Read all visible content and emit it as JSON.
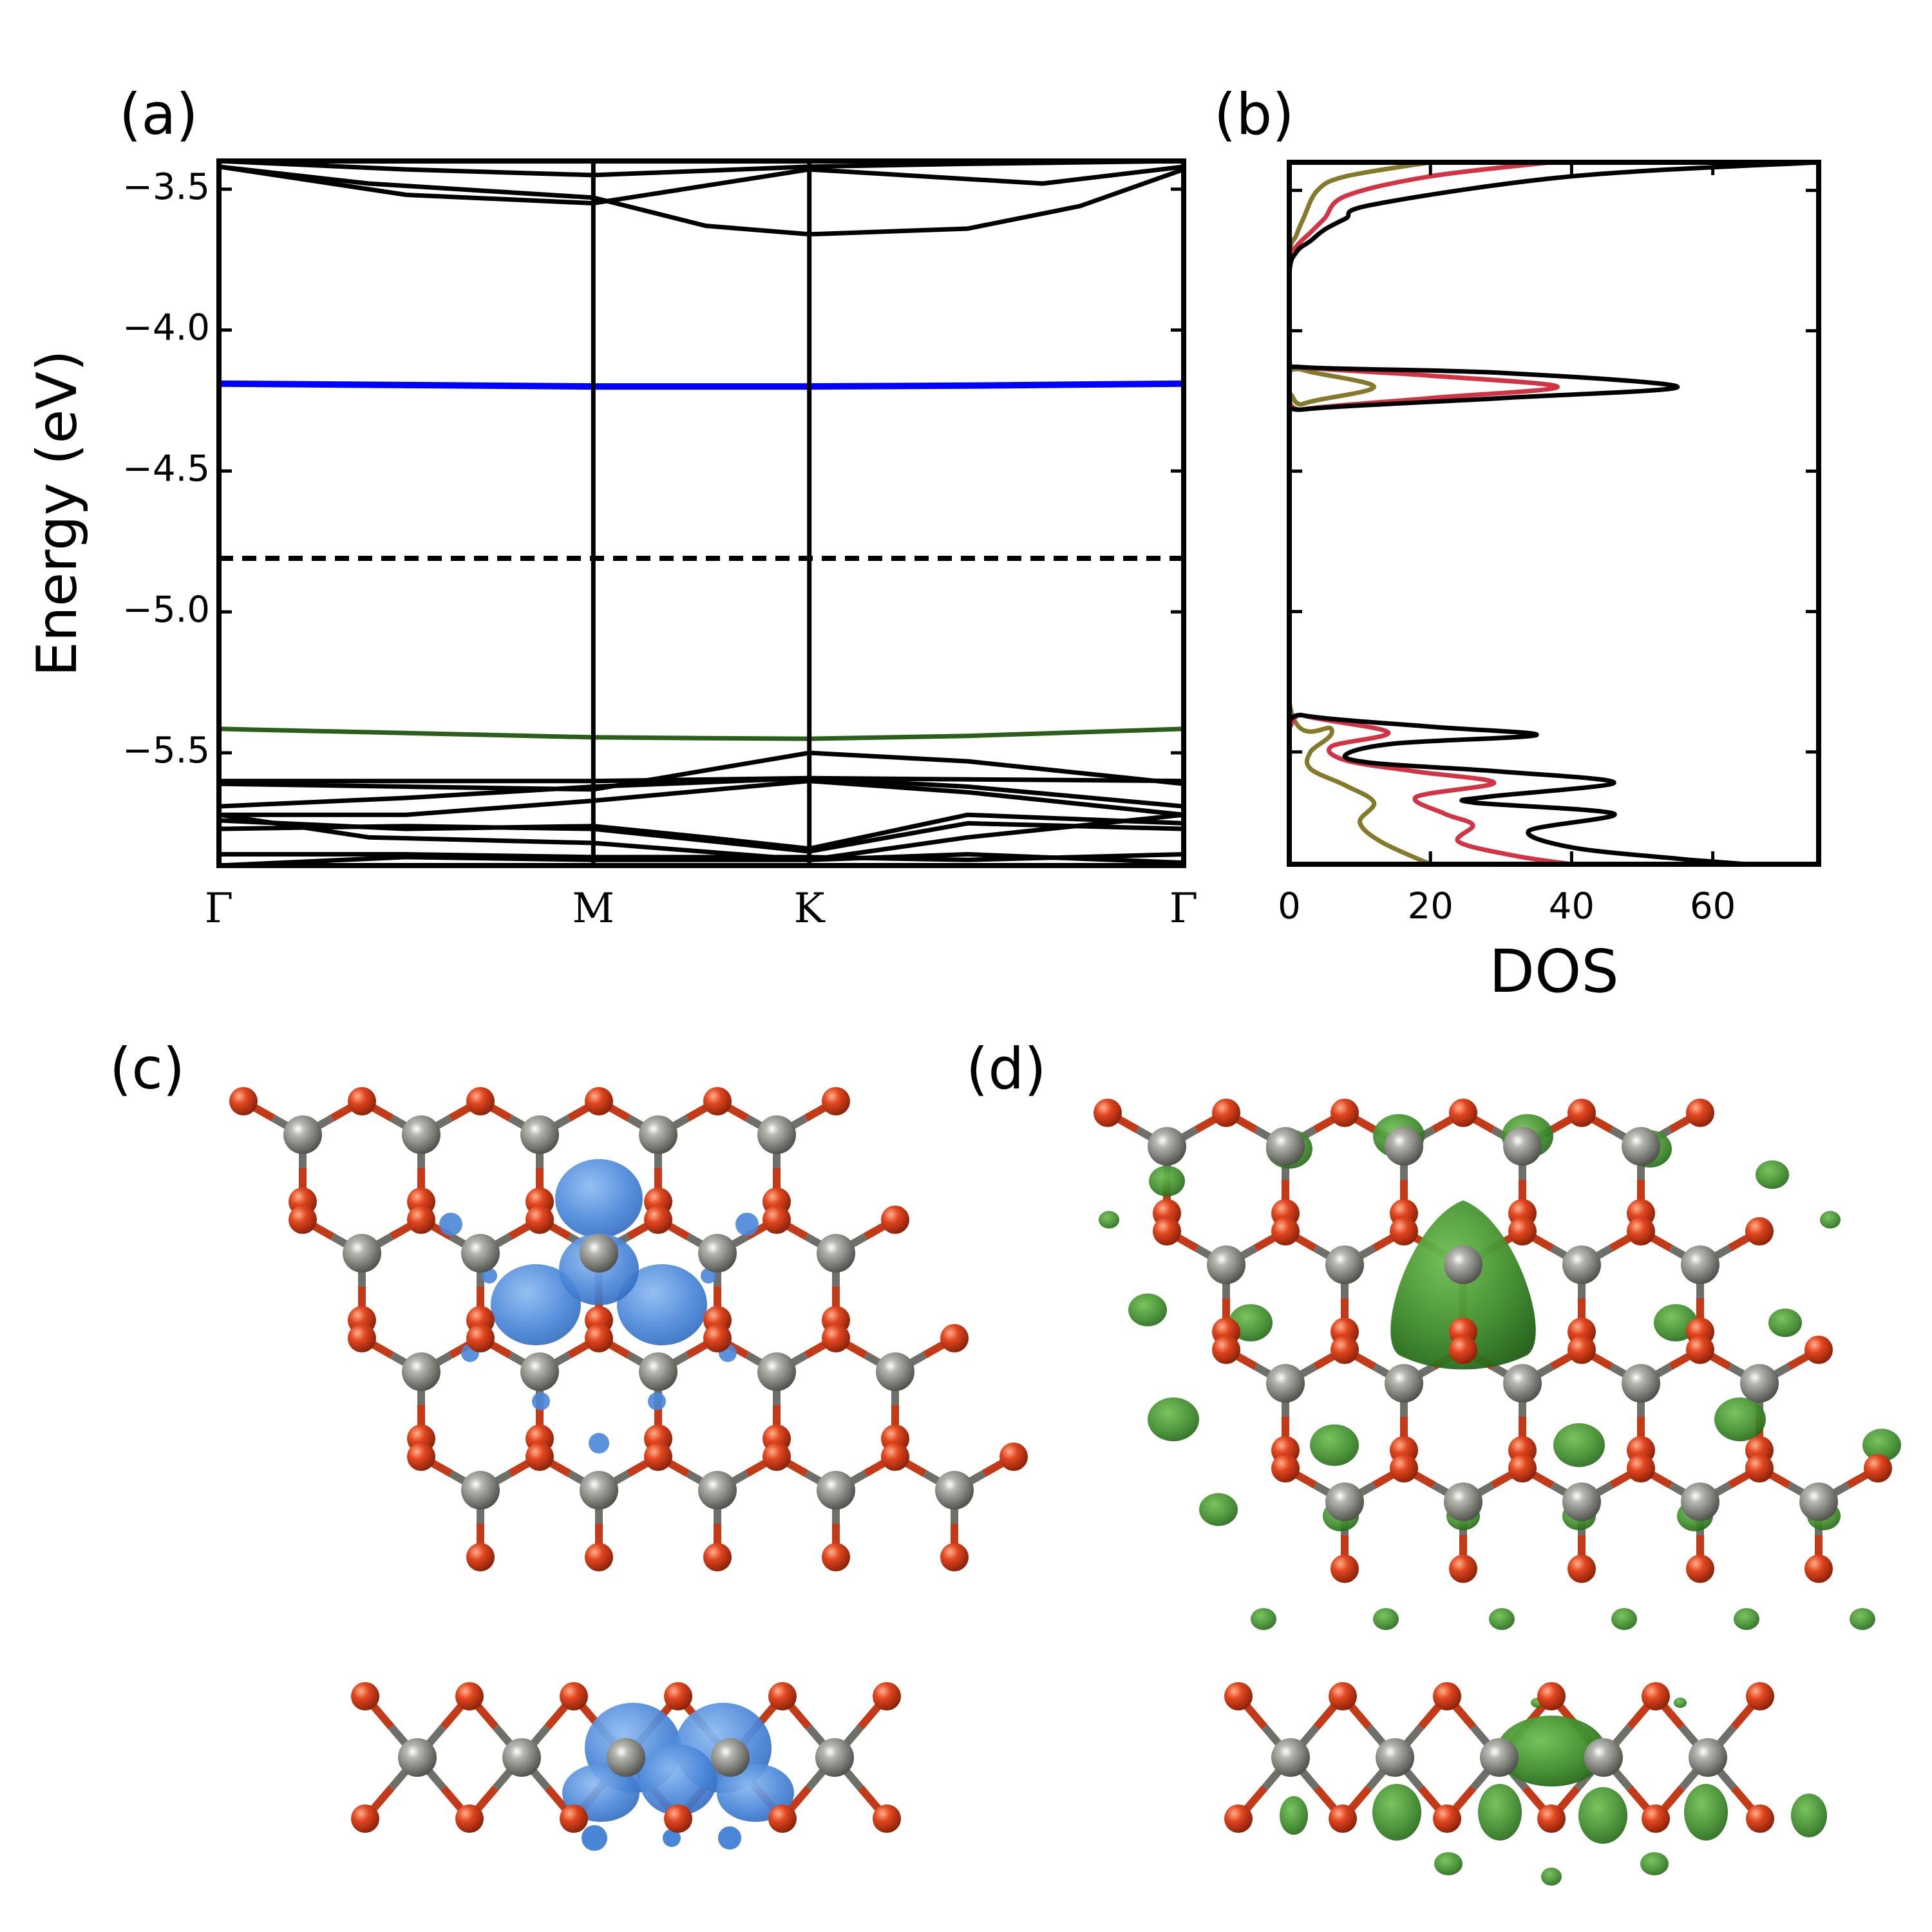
{
  "panels": {
    "a": "(a)",
    "b": "(b)",
    "c": "(c)",
    "d": "(d)"
  },
  "chart_data": [
    {
      "id": "a",
      "type": "line",
      "ylabel": "Energy (eV)",
      "ylim": [
        -5.9,
        -3.4
      ],
      "yticks": [
        -3.5,
        -4.0,
        -4.5,
        -5.0,
        -5.5
      ],
      "ytick_labels": [
        "−3.5",
        "−4.0",
        "−4.5",
        "−5.0",
        "−5.5"
      ],
      "kpoints": [
        {
          "label": "Γ",
          "pos": 0
        },
        {
          "label": "M",
          "pos": 1
        },
        {
          "label": "K",
          "pos": 1.577
        },
        {
          "label": "Γ",
          "pos": 2.577
        }
      ],
      "fermi_level": -4.81,
      "colors": {
        "bands": "#000000",
        "defect_upper": "#0000ff",
        "defect_lower": "#2a5e1a",
        "fermi": "#000000"
      },
      "highlight_bands": [
        {
          "color": "#0000ff",
          "x": [
            0,
            0.5,
            1.0,
            1.3,
            1.577,
            2.0,
            2.577
          ],
          "y": [
            -4.19,
            -4.195,
            -4.2,
            -4.2,
            -4.2,
            -4.197,
            -4.19
          ]
        },
        {
          "color": "#2a5e1a",
          "x": [
            0,
            0.5,
            1.0,
            1.3,
            1.577,
            2.0,
            2.577
          ],
          "y": [
            -5.415,
            -5.43,
            -5.445,
            -5.448,
            -5.45,
            -5.44,
            -5.415
          ]
        }
      ],
      "bands": [
        {
          "x": [
            0,
            1.0,
            1.577,
            2.577
          ],
          "y": [
            -3.4,
            -3.4,
            -3.4,
            -3.4
          ]
        },
        {
          "x": [
            0,
            0.5,
            1.0,
            1.577,
            2.0,
            2.577
          ],
          "y": [
            -3.4,
            -3.43,
            -3.45,
            -3.42,
            -3.41,
            -3.4
          ]
        },
        {
          "x": [
            0,
            0.5,
            1.0,
            1.577,
            2.2,
            2.577
          ],
          "y": [
            -3.42,
            -3.52,
            -3.55,
            -3.43,
            -3.48,
            -3.42
          ]
        },
        {
          "x": [
            0,
            0.4,
            1.0,
            1.3,
            1.577,
            2.0,
            2.3,
            2.577
          ],
          "y": [
            -3.42,
            -3.48,
            -3.53,
            -3.63,
            -3.66,
            -3.64,
            -3.56,
            -3.43
          ]
        },
        {
          "x": [
            0,
            1.0,
            1.577,
            2.577
          ],
          "y": [
            -5.6,
            -5.6,
            -5.59,
            -5.6
          ]
        },
        {
          "x": [
            0,
            0.5,
            1.0,
            1.577,
            2.0,
            2.577
          ],
          "y": [
            -5.61,
            -5.62,
            -5.63,
            -5.5,
            -5.53,
            -5.61
          ]
        },
        {
          "x": [
            0,
            0.5,
            1.0,
            1.577,
            2.0,
            2.577
          ],
          "y": [
            -5.69,
            -5.66,
            -5.62,
            -5.59,
            -5.62,
            -5.69
          ]
        },
        {
          "x": [
            0,
            0.5,
            1.0,
            1.577,
            2.0,
            2.577
          ],
          "y": [
            -5.72,
            -5.72,
            -5.67,
            -5.6,
            -5.64,
            -5.72
          ]
        },
        {
          "x": [
            0,
            0.5,
            1.0,
            1.3,
            1.577,
            2.0,
            2.577
          ],
          "y": [
            -5.74,
            -5.77,
            -5.76,
            -5.8,
            -5.84,
            -5.72,
            -5.75
          ]
        },
        {
          "x": [
            0,
            0.5,
            1.0,
            1.577,
            2.0,
            2.577
          ],
          "y": [
            -5.77,
            -5.76,
            -5.77,
            -5.85,
            -5.75,
            -5.77
          ]
        },
        {
          "x": [
            0,
            0.4,
            1.0,
            1.577,
            2.0,
            2.577
          ],
          "y": [
            -5.72,
            -5.8,
            -5.82,
            -5.88,
            -5.8,
            -5.72
          ]
        },
        {
          "x": [
            0,
            0.5,
            1.0,
            1.577,
            2.0,
            2.577
          ],
          "y": [
            -5.86,
            -5.86,
            -5.87,
            -5.87,
            -5.88,
            -5.86
          ]
        },
        {
          "x": [
            0,
            0.5,
            1.0,
            1.577,
            2.0,
            2.577
          ],
          "y": [
            -5.9,
            -5.87,
            -5.88,
            -5.88,
            -5.86,
            -5.89
          ]
        }
      ]
    },
    {
      "id": "b",
      "type": "line",
      "xlabel": "DOS",
      "xlim": [
        0,
        75
      ],
      "ylim": [
        -5.9,
        -3.4
      ],
      "xticks": [
        0,
        20,
        40,
        60
      ],
      "xtick_labels": [
        "0",
        "20",
        "40",
        "60"
      ],
      "series": [
        {
          "color": "#000000",
          "x": [
            75,
            40,
            12,
            8,
            5,
            3,
            1,
            0,
            0,
            2,
            30,
            55,
            30,
            2,
            0,
            0,
            2,
            20,
            35,
            15,
            8,
            12,
            30,
            46,
            28,
            26,
            46,
            34,
            40,
            55,
            65
          ],
          "y": [
            -3.4,
            -3.45,
            -3.55,
            -3.6,
            -3.64,
            -3.68,
            -3.72,
            -3.8,
            -4.1,
            -4.13,
            -4.15,
            -4.2,
            -4.24,
            -4.28,
            -4.32,
            -5.32,
            -5.37,
            -5.41,
            -5.44,
            -5.47,
            -5.51,
            -5.54,
            -5.57,
            -5.61,
            -5.66,
            -5.68,
            -5.72,
            -5.78,
            -5.84,
            -5.88,
            -5.9
          ]
        },
        {
          "color": "#d13545",
          "x": [
            37,
            20,
            8,
            5,
            3,
            1,
            0,
            0,
            2,
            20,
            38,
            20,
            2,
            0,
            0,
            2,
            14,
            6,
            8,
            18,
            29,
            18,
            22,
            26,
            24,
            32,
            40
          ],
          "y": [
            -3.4,
            -3.45,
            -3.52,
            -3.6,
            -3.65,
            -3.7,
            -3.76,
            -4.1,
            -4.13,
            -4.16,
            -4.2,
            -4.24,
            -4.28,
            -4.32,
            -5.32,
            -5.37,
            -5.43,
            -5.48,
            -5.53,
            -5.57,
            -5.61,
            -5.66,
            -5.72,
            -5.76,
            -5.82,
            -5.87,
            -5.9
          ]
        },
        {
          "color": "#857a2b",
          "x": [
            20,
            8,
            4,
            2,
            1,
            0,
            0,
            2,
            12,
            2,
            0,
            0,
            6,
            3,
            3,
            8,
            12,
            10,
            13,
            20
          ],
          "y": [
            -3.4,
            -3.45,
            -3.5,
            -3.6,
            -3.66,
            -3.74,
            -4.1,
            -4.14,
            -4.2,
            -4.26,
            -4.32,
            -5.32,
            -5.42,
            -5.5,
            -5.56,
            -5.62,
            -5.68,
            -5.75,
            -5.82,
            -5.9
          ]
        }
      ]
    }
  ],
  "structures": {
    "colors": {
      "oxygen": "#d6401f",
      "carbon": "#7a7a74",
      "bond_o": "#c23a17",
      "bond_c": "#6f6f6a",
      "orbital_c": "#4a86d8",
      "orbital_d": "#3d8a2a"
    }
  }
}
